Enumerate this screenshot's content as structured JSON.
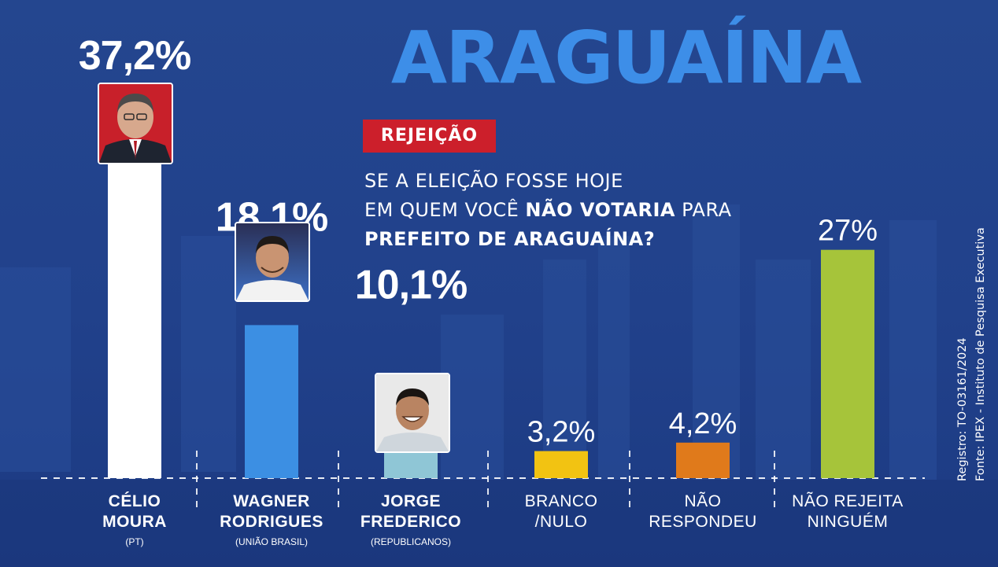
{
  "title": "ARAGUAÍNA",
  "badge": "REJEIÇÃO",
  "question": {
    "line1": "SE A ELEIÇÃO FOSSE HOJE",
    "line2_pre": "EM QUEM VOCÊ ",
    "line2_bold": "NÃO VOTARIA",
    "line2_post": " PARA",
    "line3": "PREFEITO DE ARAGUAÍNA?"
  },
  "source": {
    "registro": "Registro: TO-03161/2024",
    "fonte": "Fonte: IPEX - Instituto de Pesquisa Executiva"
  },
  "colors": {
    "background": "#22428f",
    "title": "#3d8ee8",
    "badge": "#cc1f2b",
    "bar_celio": "#ffffff",
    "bar_wagner": "#3c8fe3",
    "bar_jorge": "#8fc6d6",
    "bar_branco": "#f2c312",
    "bar_nao_respondeu": "#e07a1b",
    "bar_nao_rejeita": "#a6c43a"
  },
  "chart_data": {
    "type": "bar",
    "title": "ARAGUAÍNA",
    "categories": [
      "CÉLIO MOURA",
      "WAGNER RODRIGUES",
      "JORGE FREDERICO",
      "BRANCO /NULO",
      "NÃO RESPONDEU",
      "NÃO REJEITA NINGUÉM"
    ],
    "values": [
      37.2,
      18.1,
      10.1,
      3.2,
      4.2,
      27
    ],
    "value_labels": [
      "37,2%",
      "18,1%",
      "10,1%",
      "3,2%",
      "4,2%",
      "27%"
    ],
    "xlabel": "",
    "ylabel": "",
    "unit": "%",
    "ylim": [
      0,
      37.2
    ],
    "grid": false,
    "bars": [
      {
        "label_lines": [
          "CÉLIO",
          "MOURA"
        ],
        "party": "(PT)",
        "color": "#ffffff",
        "photo": "celio",
        "bold": true
      },
      {
        "label_lines": [
          "WAGNER",
          "RODRIGUES"
        ],
        "party": "(UNIÃO BRASIL)",
        "color": "#3c8fe3",
        "photo": "wagner",
        "bold": true
      },
      {
        "label_lines": [
          "JORGE",
          "FREDERICO"
        ],
        "party": "(REPUBLICANOS)",
        "color": "#8fc6d6",
        "photo": "jorge",
        "bold": true
      },
      {
        "label_lines": [
          "BRANCO",
          "/NULO"
        ],
        "party": "",
        "color": "#f2c312",
        "photo": "",
        "bold": false
      },
      {
        "label_lines": [
          "NÃO",
          "RESPONDEU"
        ],
        "party": "",
        "color": "#e07a1b",
        "photo": "",
        "bold": false
      },
      {
        "label_lines": [
          "NÃO REJEITA",
          "NINGUÉM"
        ],
        "party": "",
        "color": "#a6c43a",
        "photo": "",
        "bold": false
      }
    ]
  }
}
